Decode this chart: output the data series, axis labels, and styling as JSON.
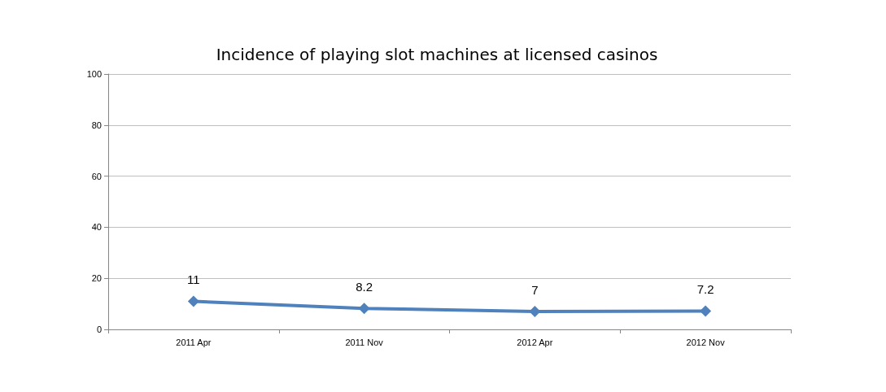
{
  "chart_data": {
    "type": "line",
    "title": "Incidence of playing slot machines at licensed casinos",
    "categories": [
      "2011 Apr",
      "2011 Nov",
      "2012 Apr",
      "2012 Nov"
    ],
    "series": [
      {
        "color": "#4f81bd",
        "values": [
          11,
          8.2,
          7,
          7.2
        ]
      }
    ],
    "ylim": [
      0,
      100
    ],
    "yticks": [
      0,
      20,
      40,
      60,
      80,
      100
    ],
    "grid": "y",
    "marker": "diamond",
    "line_style": "solid",
    "data_labels": true
  }
}
